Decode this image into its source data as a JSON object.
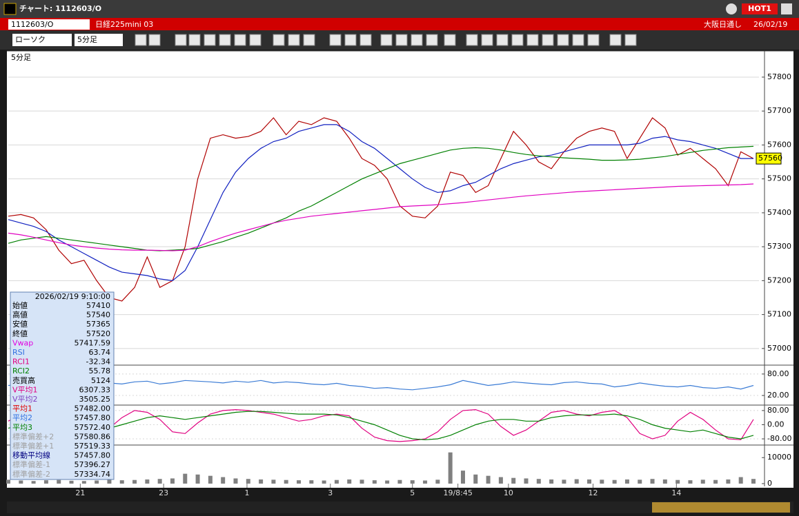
{
  "window": {
    "title": "チャート: 1112603/O",
    "hot": "HOT1"
  },
  "header": {
    "symbol": "1112603/O",
    "name": "日経225mini 03",
    "exchange": "大阪日通し",
    "date": "26/02/19"
  },
  "toolbar": {
    "chart_type": "ローソク",
    "interval": "5分足"
  },
  "info_panel": {
    "datetime": "2026/02/19 9:10:00",
    "rows": [
      [
        "始値",
        "57410"
      ],
      [
        "高値",
        "57540"
      ],
      [
        "安値",
        "57365"
      ],
      [
        "終値",
        "57520"
      ],
      [
        "Vwap",
        "57417.59"
      ],
      [
        "RSI",
        "63.74"
      ],
      [
        "RCI1",
        "-32.34"
      ],
      [
        "RCI2",
        "55.78"
      ],
      [
        "売買高",
        "5124"
      ],
      [
        "V平均1",
        "6307.33"
      ],
      [
        "V平均2",
        "3505.25"
      ],
      [
        "平均1",
        "57482.00"
      ],
      [
        "平均2",
        "57457.80"
      ],
      [
        "平均3",
        "57572.40"
      ],
      [
        "標準偏差+2",
        "57580.86"
      ],
      [
        "標準偏差+1",
        "57519.33"
      ],
      [
        "移動平均線",
        "57457.80"
      ],
      [
        "標準偏差-1",
        "57396.27"
      ],
      [
        "標準偏差-2",
        "57334.74"
      ]
    ],
    "colors": [
      "#000000",
      "#000000",
      "#000000",
      "#000000",
      "#e000e0",
      "#3070e0",
      "#e00080",
      "#008000",
      "#000000",
      "#e00080",
      "#8040c0",
      "#e00000",
      "#3070e0",
      "#008000",
      "#a0a0a0",
      "#a0a0a0",
      "#000080",
      "#a0a0a0",
      "#a0a0a0"
    ]
  },
  "chart_data": [
    {
      "type": "line",
      "title": "5分足",
      "ylim": [
        56955,
        57873
      ],
      "yticks": [
        57000,
        57100,
        57200,
        57300,
        57400,
        57500,
        57600,
        57700,
        57800
      ],
      "xlim": [
        0,
        59
      ],
      "grid": true,
      "last_price": 57560,
      "series": [
        {
          "color": "#b00000",
          "values": [
            57390,
            57395,
            57385,
            57350,
            57290,
            57250,
            57260,
            57200,
            57150,
            57140,
            57180,
            57270,
            57180,
            57200,
            57300,
            57500,
            57620,
            57630,
            57620,
            57625,
            57640,
            57680,
            57630,
            57670,
            57660,
            57680,
            57670,
            57620,
            57560,
            57540,
            57500,
            57420,
            57390,
            57385,
            57420,
            57520,
            57510,
            57460,
            57480,
            57560,
            57640,
            57600,
            57550,
            57530,
            57580,
            57620,
            57640,
            57650,
            57640,
            57560,
            57620,
            57680,
            57650,
            57570,
            57590,
            57560,
            57530,
            57480,
            57580,
            57560
          ]
        },
        {
          "color": "#1020c0",
          "values": [
            57380,
            57370,
            57360,
            57345,
            57320,
            57300,
            57280,
            57260,
            57240,
            57225,
            57220,
            57215,
            57205,
            57200,
            57230,
            57300,
            57380,
            57460,
            57520,
            57560,
            57590,
            57610,
            57620,
            57640,
            57650,
            57660,
            57660,
            57640,
            57610,
            57590,
            57560,
            57530,
            57500,
            57475,
            57460,
            57465,
            57480,
            57490,
            57510,
            57530,
            57545,
            57555,
            57565,
            57570,
            57580,
            57590,
            57600,
            57600,
            57600,
            57600,
            57605,
            57620,
            57625,
            57615,
            57610,
            57600,
            57590,
            57575,
            57560,
            57560
          ]
        },
        {
          "color": "#008000",
          "values": [
            57310,
            57320,
            57325,
            57330,
            57325,
            57320,
            57315,
            57310,
            57305,
            57300,
            57295,
            57290,
            57288,
            57290,
            57292,
            57295,
            57305,
            57315,
            57328,
            57340,
            57355,
            57370,
            57385,
            57405,
            57420,
            57440,
            57460,
            57480,
            57500,
            57515,
            57530,
            57545,
            57555,
            57565,
            57575,
            57585,
            57590,
            57592,
            57590,
            57585,
            57578,
            57572,
            57568,
            57565,
            57562,
            57560,
            57558,
            57555,
            57555,
            57556,
            57558,
            57562,
            57566,
            57572,
            57578,
            57584,
            57588,
            57592,
            57594,
            57596
          ]
        },
        {
          "color": "#e000c0",
          "values": [
            57340,
            57335,
            57328,
            57320,
            57312,
            57305,
            57300,
            57296,
            57293,
            57291,
            57290,
            57290,
            57289,
            57288,
            57290,
            57300,
            57315,
            57328,
            57340,
            57350,
            57360,
            57370,
            57378,
            57384,
            57390,
            57394,
            57398,
            57402,
            57406,
            57410,
            57414,
            57418,
            57420,
            57422,
            57424,
            57427,
            57430,
            57434,
            57438,
            57442,
            57446,
            57450,
            57453,
            57456,
            57459,
            57462,
            57464,
            57466,
            57468,
            57470,
            57472,
            57474,
            57476,
            57478,
            57479,
            57480,
            57481,
            57482,
            57483,
            57485
          ]
        }
      ]
    },
    {
      "type": "line",
      "ylim": [
        -3,
        101
      ],
      "yticks": [
        {
          "value": 80,
          "label": "80.00"
        },
        {
          "value": 20,
          "label": "20.00"
        }
      ],
      "xlim": [
        0,
        59
      ],
      "grid": true,
      "series": [
        {
          "color": "#3a7bd5",
          "values": [
            48,
            50,
            45,
            42,
            44,
            40,
            46,
            50,
            55,
            52,
            58,
            60,
            52,
            56,
            62,
            60,
            58,
            55,
            60,
            57,
            62,
            55,
            58,
            56,
            52,
            50,
            54,
            48,
            45,
            40,
            42,
            38,
            36,
            40,
            44,
            50,
            62,
            55,
            48,
            52,
            58,
            55,
            52,
            50,
            56,
            58,
            54,
            52,
            44,
            48,
            55,
            50,
            46,
            44,
            48,
            42,
            40,
            44,
            38,
            48
          ]
        }
      ]
    },
    {
      "type": "line",
      "ylim": [
        -111,
        103
      ],
      "yticks": [
        {
          "value": 80,
          "label": "80.00"
        },
        {
          "value": 0,
          "label": "0.00"
        },
        {
          "value": -80,
          "label": "-80.00"
        }
      ],
      "xlim": [
        0,
        59
      ],
      "grid": true,
      "series": [
        {
          "color": "#e00080",
          "values": [
            20,
            60,
            80,
            50,
            -20,
            -70,
            -80,
            -60,
            -20,
            40,
            80,
            70,
            30,
            -40,
            -50,
            10,
            60,
            80,
            85,
            80,
            70,
            60,
            40,
            20,
            30,
            50,
            60,
            50,
            -20,
            -70,
            -90,
            -95,
            -90,
            -80,
            -40,
            30,
            80,
            85,
            60,
            -10,
            -60,
            -30,
            20,
            70,
            80,
            60,
            50,
            70,
            80,
            40,
            -50,
            -80,
            -60,
            20,
            70,
            30,
            -30,
            -80,
            -85,
            30
          ]
        },
        {
          "color": "#008000",
          "values": [
            -20,
            0,
            20,
            30,
            20,
            0,
            -20,
            -30,
            -20,
            0,
            20,
            40,
            50,
            40,
            30,
            40,
            50,
            60,
            70,
            75,
            75,
            70,
            65,
            60,
            60,
            60,
            55,
            40,
            20,
            0,
            -30,
            -60,
            -80,
            -85,
            -80,
            -60,
            -30,
            0,
            20,
            30,
            30,
            20,
            20,
            40,
            50,
            55,
            55,
            55,
            60,
            50,
            30,
            0,
            -20,
            -30,
            -40,
            -30,
            -50,
            -70,
            -80,
            -60
          ]
        }
      ]
    },
    {
      "type": "bar",
      "ylim": [
        0,
        14300
      ],
      "yticks": [
        10000,
        0
      ],
      "xlim": [
        0,
        59
      ],
      "grid": false,
      "xticks": [
        {
          "value": 5.7,
          "label": "21"
        },
        {
          "value": 12.3,
          "label": "23"
        },
        {
          "value": 18.9,
          "label": "1"
        },
        {
          "value": 25.5,
          "label": "3"
        },
        {
          "value": 32.0,
          "label": "5"
        },
        {
          "value": 35.6,
          "label": "19/8:45"
        },
        {
          "value": 39.6,
          "label": "10"
        },
        {
          "value": 46.3,
          "label": "12"
        },
        {
          "value": 52.9,
          "label": "14"
        }
      ],
      "series": [
        {
          "color": "#808080",
          "values": [
            1500,
            1200,
            1000,
            1300,
            1400,
            1100,
            1000,
            1200,
            1500,
            1300,
            1400,
            1600,
            1800,
            2000,
            3800,
            3500,
            3000,
            2500,
            2000,
            1800,
            1600,
            1500,
            1400,
            1300,
            1300,
            1200,
            1400,
            1600,
            1500,
            1300,
            1200,
            1400,
            1300,
            1200,
            1500,
            12000,
            5000,
            3500,
            3000,
            2500,
            2200,
            2000,
            1800,
            1600,
            1500,
            1700,
            1600,
            1500,
            1400,
            1600,
            1500,
            1800,
            1600,
            1400,
            1300,
            1500,
            1400,
            1600,
            2500,
            1800
          ]
        }
      ]
    }
  ]
}
